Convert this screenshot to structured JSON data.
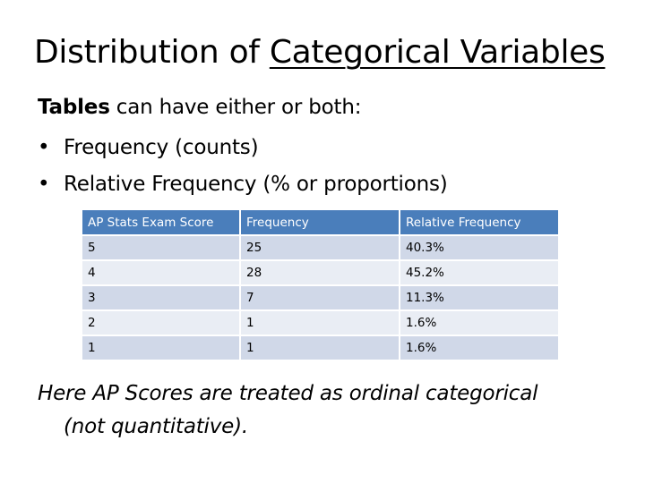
{
  "slide": {
    "title_prefix": "Distribution of ",
    "title_underlined": "Categorical Variables",
    "intro_bold": "Tables",
    "intro_rest": " can have either or both:",
    "bullet_glyph": "•",
    "bullets": [
      "Frequency (counts)",
      "Relative Frequency (% or proportions)"
    ],
    "note_line1": "Here AP Scores are treated as ordinal categorical",
    "note_line2": "(not quantitative)."
  },
  "table": {
    "headers": [
      "AP Stats Exam Score",
      "Frequency",
      "Relative Frequency"
    ],
    "rows": [
      [
        "5",
        "25",
        "40.3%"
      ],
      [
        "4",
        "28",
        "45.2%"
      ],
      [
        "3",
        "7",
        "11.3%"
      ],
      [
        "2",
        "1",
        "1.6%"
      ],
      [
        "1",
        "1",
        "1.6%"
      ]
    ],
    "header_color": "#4a7ebb",
    "row_colors": [
      "#d0d8e8",
      "#e9edf4"
    ]
  }
}
